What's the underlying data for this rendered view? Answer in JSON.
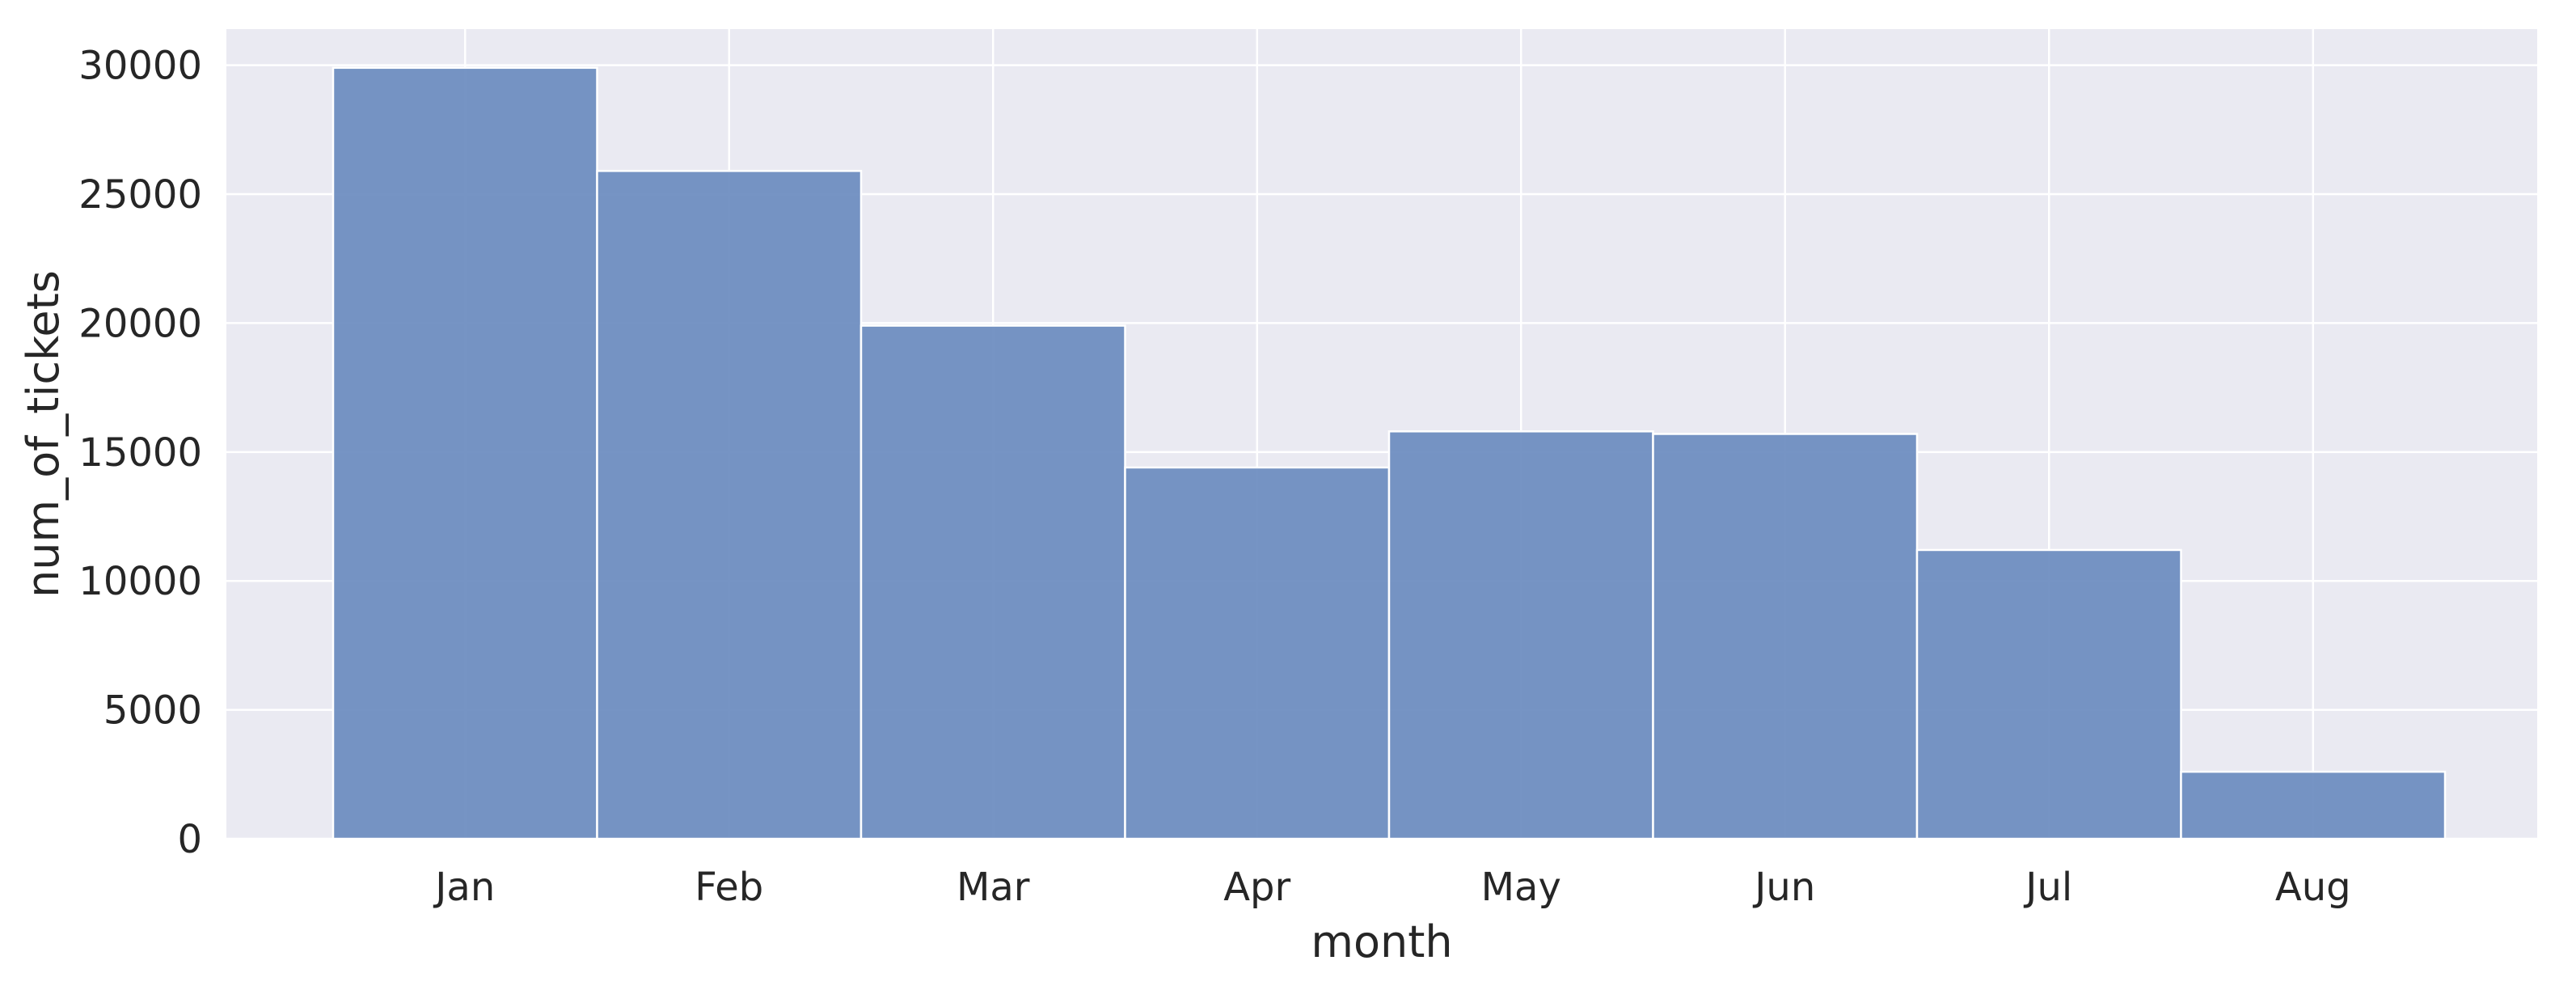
{
  "chart_data": {
    "type": "bar",
    "title": "",
    "xlabel": "month",
    "ylabel": "num_of_tickets",
    "categories": [
      "Jan",
      "Feb",
      "Mar",
      "Apr",
      "May",
      "Jun",
      "Jul",
      "Aug"
    ],
    "values": [
      29900,
      25900,
      19900,
      14400,
      15800,
      15700,
      11200,
      2600
    ],
    "ylim": [
      0,
      31400
    ],
    "yticks": [
      0,
      5000,
      10000,
      15000,
      20000,
      25000,
      30000
    ],
    "ytick_labels": [
      "0",
      "5000",
      "10000",
      "15000",
      "20000",
      "25000",
      "30000"
    ],
    "grid": true,
    "legend": "none"
  },
  "colors": {
    "plot_background": "#eaeaf2",
    "grid": "#ffffff",
    "bar_fill": "#6a8bbf",
    "bar_edge": "#ffffff",
    "text": "#262626"
  }
}
